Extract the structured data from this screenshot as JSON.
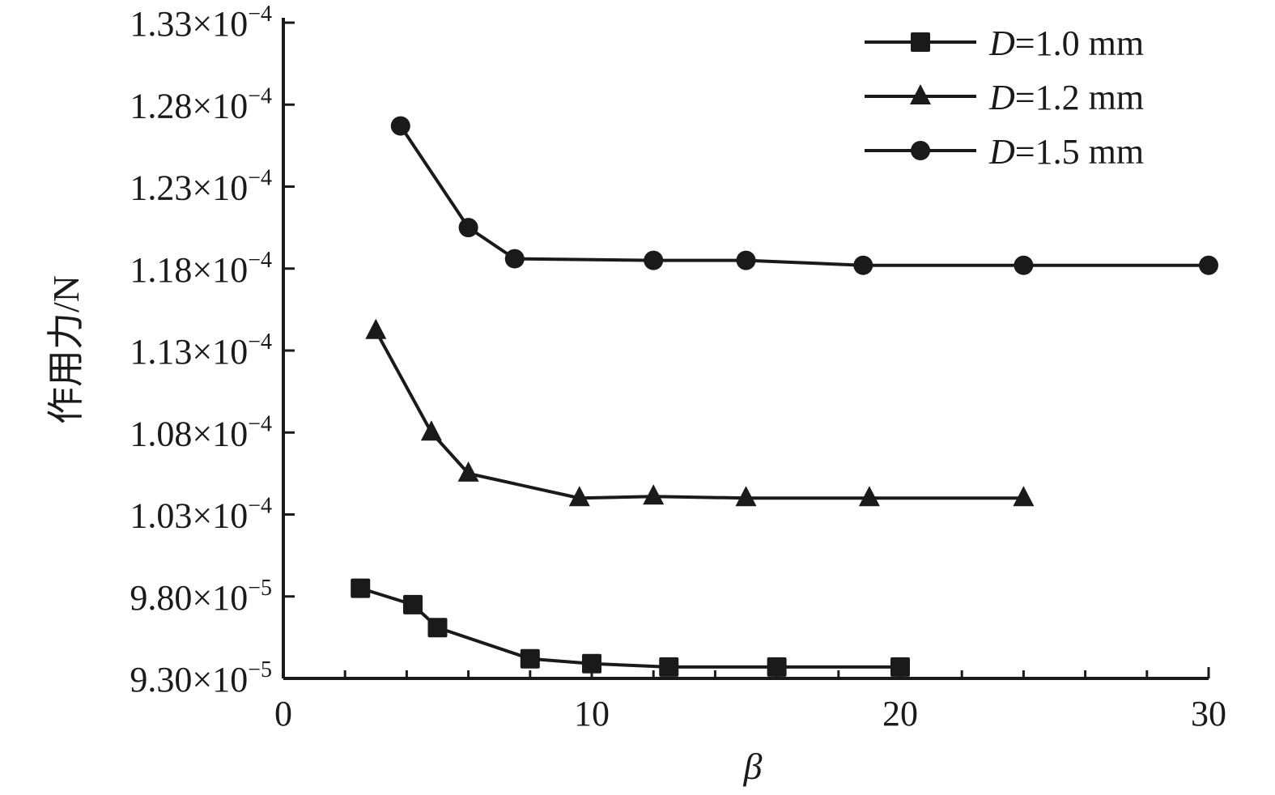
{
  "chart_data": {
    "type": "line",
    "xlabel": "β",
    "ylabel": "作用力/N",
    "xlim": [
      0,
      30
    ],
    "ylim": [
      9.3e-05,
      0.000133
    ],
    "x_ticks": [
      0,
      10,
      20,
      30
    ],
    "x_tick_labels": [
      "0",
      "10",
      "20",
      "30"
    ],
    "y_ticks": [
      9.3e-05,
      9.8e-05,
      0.000103,
      0.000108,
      0.000113,
      0.000118,
      0.000123,
      0.000128,
      0.000133
    ],
    "y_tick_labels": [
      {
        "mant": "9.30×10",
        "exp": "−5"
      },
      {
        "mant": "9.80×10",
        "exp": "−5"
      },
      {
        "mant": "1.03×10",
        "exp": "−4"
      },
      {
        "mant": "1.08×10",
        "exp": "−4"
      },
      {
        "mant": "1.13×10",
        "exp": "−4"
      },
      {
        "mant": "1.18×10",
        "exp": "−4"
      },
      {
        "mant": "1.23×10",
        "exp": "−4"
      },
      {
        "mant": "1.28×10",
        "exp": "−4"
      },
      {
        "mant": "1.33×10",
        "exp": "−4"
      }
    ],
    "legend_position": "top-right",
    "grid": false,
    "series": [
      {
        "name_prefix": "D",
        "name": "=1.0 mm",
        "marker": "square",
        "x": [
          2.5,
          4.2,
          5.0,
          8.0,
          10.0,
          12.5,
          16.0,
          20.0
        ],
        "y": [
          9.85e-05,
          9.75e-05,
          9.61e-05,
          9.42e-05,
          9.39e-05,
          9.37e-05,
          9.37e-05,
          9.37e-05
        ]
      },
      {
        "name_prefix": "D",
        "name": "=1.2 mm",
        "marker": "triangle",
        "x": [
          3.0,
          4.8,
          6.0,
          9.6,
          12.0,
          15.0,
          19.0,
          24.0
        ],
        "y": [
          0.0001142,
          0.000108,
          0.0001055,
          0.000104,
          0.0001041,
          0.000104,
          0.000104,
          0.000104
        ]
      },
      {
        "name_prefix": "D",
        "name": "=1.5 mm",
        "marker": "circle",
        "x": [
          3.8,
          6.0,
          7.5,
          12.0,
          15.0,
          18.8,
          24.0,
          30.0
        ],
        "y": [
          0.0001267,
          0.0001205,
          0.0001186,
          0.0001185,
          0.0001185,
          0.0001182,
          0.0001182,
          0.0001182
        ]
      }
    ]
  }
}
